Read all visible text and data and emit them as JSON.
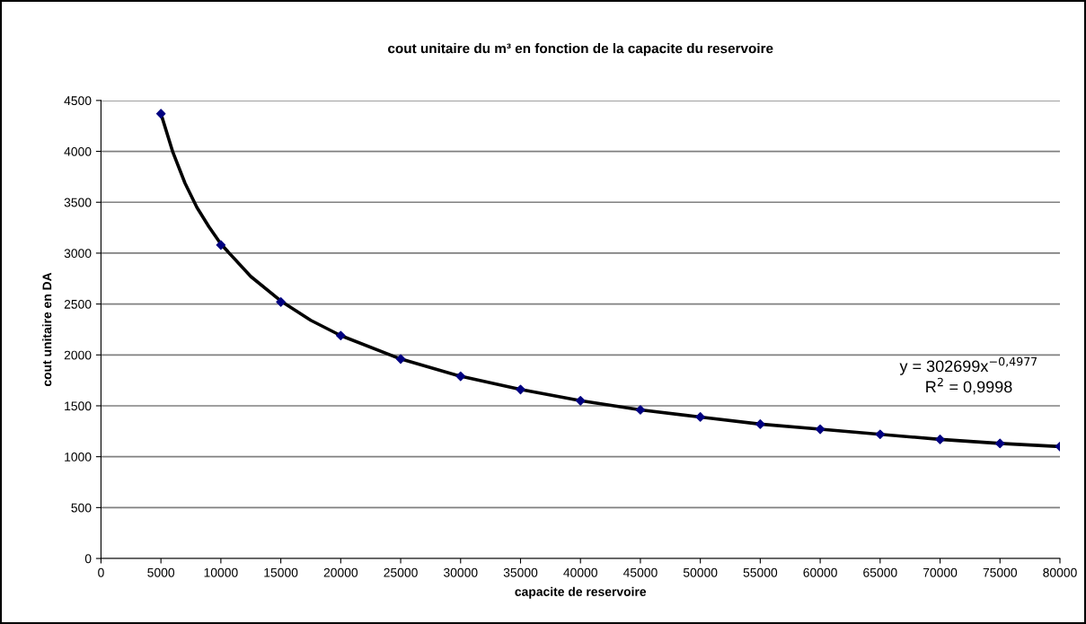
{
  "chart_data": {
    "type": "scatter",
    "title": "cout unitaire du m³ en fonction de la capacite du reservoire",
    "xlabel": "capacite de reservoire",
    "ylabel": "cout unitaire en DA",
    "x": [
      5000,
      10000,
      15000,
      20000,
      25000,
      30000,
      35000,
      40000,
      45000,
      50000,
      55000,
      60000,
      65000,
      70000,
      75000,
      80000
    ],
    "series": [
      {
        "color": "#000080",
        "marker": "diamond",
        "values": [
          4370,
          3080,
          2520,
          2190,
          1960,
          1790,
          1660,
          1550,
          1460,
          1390,
          1320,
          1270,
          1220,
          1170,
          1130,
          1100
        ]
      },
      {
        "type": "line",
        "color": "#000000",
        "line_style": "solid",
        "marker": "none",
        "x": [
          5000,
          6000,
          7000,
          8000,
          9000,
          10000,
          12500,
          15000,
          17500,
          20000,
          25000,
          30000,
          35000,
          40000,
          45000,
          50000,
          55000,
          60000,
          65000,
          70000,
          75000,
          80000
        ],
        "values": [
          4370,
          3990,
          3690,
          3450,
          3260,
          3090,
          2770,
          2530,
          2340,
          2190,
          1960,
          1790,
          1660,
          1550,
          1460,
          1390,
          1320,
          1270,
          1220,
          1170,
          1130,
          1100
        ]
      }
    ],
    "annotations": [
      "y = 302699x$^{−0,4977}$",
      "R$^{2}$ = 0,9998"
    ],
    "xlim": [
      0,
      80000
    ],
    "xticks": [
      0,
      5000,
      10000,
      15000,
      20000,
      25000,
      30000,
      35000,
      40000,
      45000,
      50000,
      55000,
      60000,
      65000,
      70000,
      75000,
      80000
    ],
    "ylim": [
      0,
      4500
    ],
    "yticks": [
      0,
      500,
      1000,
      1500,
      2000,
      2500,
      3000,
      3500,
      4000,
      4500
    ],
    "grid": "y"
  }
}
